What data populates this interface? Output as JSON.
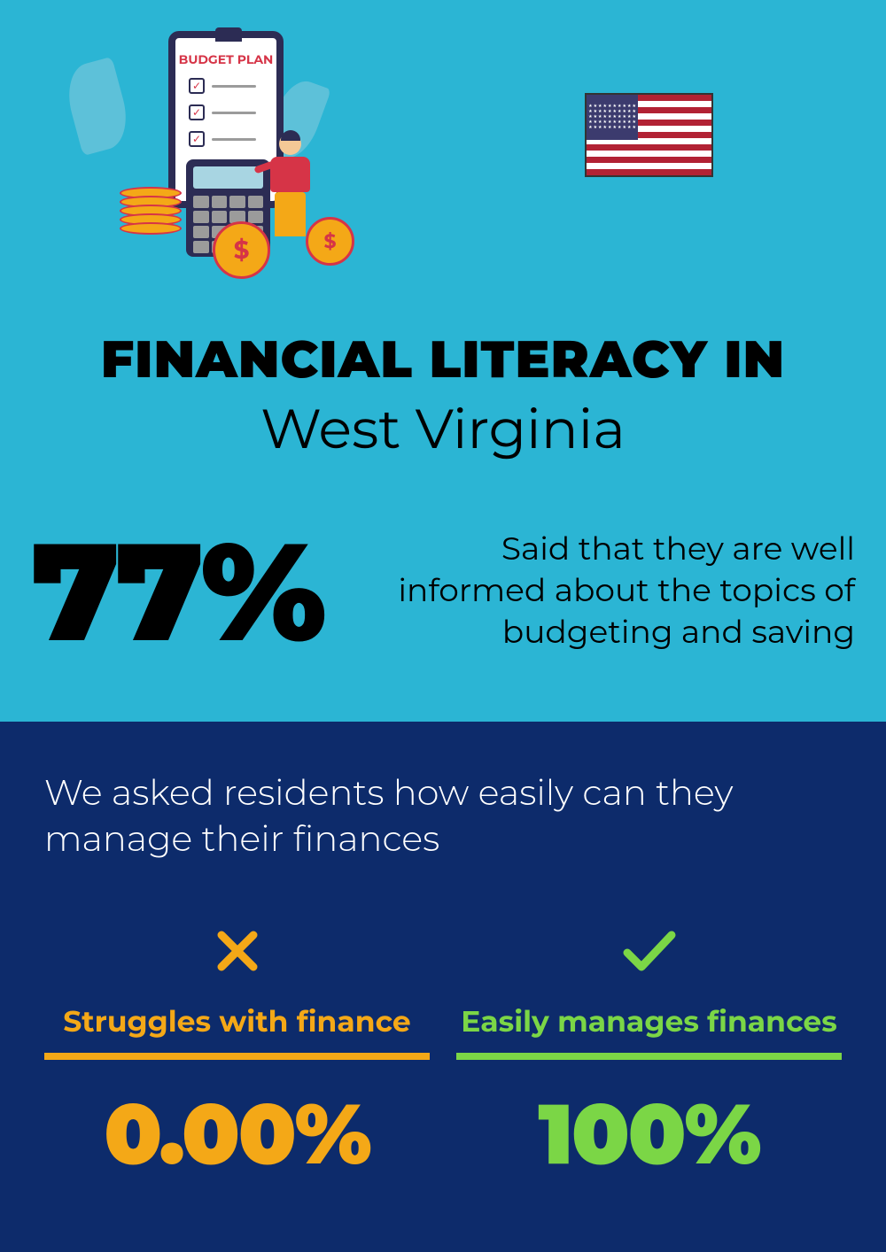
{
  "colors": {
    "top_bg": "#2bb5d4",
    "bottom_bg": "#0d2b6b",
    "text_dark": "#000000",
    "text_light": "#ffffff",
    "accent_yellow": "#f4a817",
    "accent_green": "#7bd646",
    "flag_red": "#b22234",
    "flag_blue": "#3c3b6e",
    "flag_white": "#ffffff"
  },
  "illustration": {
    "budget_label": "BUDGET PLAN"
  },
  "title": {
    "main": "FINANCIAL LITERACY IN",
    "sub": "West Virginia"
  },
  "headline_stat": {
    "percent": "77%",
    "description": "Said that they are well informed about the topics of budgeting and saving"
  },
  "question": "We asked residents how easily can they manage their finances",
  "results": {
    "struggles": {
      "icon": "×",
      "label": "Struggles with finance",
      "value": "0.00%"
    },
    "manages": {
      "icon": "✓",
      "label": "Easily manages finances",
      "value": "100%"
    }
  }
}
